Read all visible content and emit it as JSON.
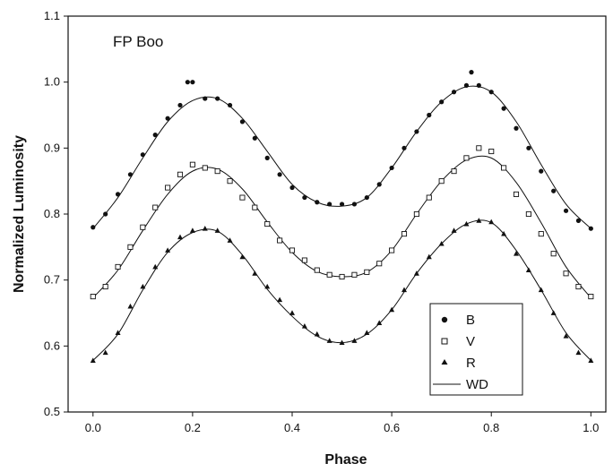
{
  "chart_data": {
    "type": "scatter",
    "title": "",
    "annotation": "FP Boo",
    "xlabel": "Phase",
    "ylabel": "Normalized Luminosity",
    "xlim": [
      -0.05,
      1.03
    ],
    "ylim": [
      0.5,
      1.1
    ],
    "xticks": [
      0.0,
      0.2,
      0.4,
      0.6,
      0.8,
      1.0
    ],
    "xtick_labels": [
      "0.0",
      "0.2",
      "0.4",
      "0.6",
      "0.8",
      "1.0"
    ],
    "yticks": [
      0.5,
      0.6,
      0.7,
      0.8,
      0.9,
      1.0,
      1.1
    ],
    "ytick_labels": [
      "0.5",
      "0.6",
      "0.7",
      "0.8",
      "0.9",
      "1.0",
      "1.1"
    ],
    "grid": false,
    "legend_position": "bottom-right",
    "series": [
      {
        "name": "B",
        "marker": "circle",
        "x": [
          0.0,
          0.025,
          0.05,
          0.075,
          0.1,
          0.125,
          0.15,
          0.175,
          0.19,
          0.2,
          0.225,
          0.25,
          0.275,
          0.3,
          0.325,
          0.35,
          0.375,
          0.4,
          0.425,
          0.45,
          0.475,
          0.5,
          0.525,
          0.55,
          0.575,
          0.6,
          0.625,
          0.65,
          0.675,
          0.7,
          0.725,
          0.75,
          0.76,
          0.775,
          0.8,
          0.825,
          0.85,
          0.875,
          0.9,
          0.925,
          0.95,
          0.975,
          1.0
        ],
        "y": [
          0.78,
          0.8,
          0.83,
          0.86,
          0.89,
          0.92,
          0.945,
          0.965,
          1.0,
          1.0,
          0.975,
          0.975,
          0.965,
          0.94,
          0.915,
          0.885,
          0.86,
          0.84,
          0.825,
          0.818,
          0.815,
          0.815,
          0.815,
          0.825,
          0.845,
          0.87,
          0.9,
          0.925,
          0.95,
          0.97,
          0.985,
          0.995,
          1.015,
          0.995,
          0.985,
          0.96,
          0.93,
          0.9,
          0.865,
          0.835,
          0.805,
          0.79,
          0.778
        ]
      },
      {
        "name": "V",
        "marker": "open-square",
        "x": [
          0.0,
          0.025,
          0.05,
          0.075,
          0.1,
          0.125,
          0.15,
          0.175,
          0.2,
          0.225,
          0.25,
          0.275,
          0.3,
          0.325,
          0.35,
          0.375,
          0.4,
          0.425,
          0.45,
          0.475,
          0.5,
          0.525,
          0.55,
          0.575,
          0.6,
          0.625,
          0.65,
          0.675,
          0.7,
          0.725,
          0.75,
          0.775,
          0.8,
          0.825,
          0.85,
          0.875,
          0.9,
          0.925,
          0.95,
          0.975,
          1.0
        ],
        "y": [
          0.675,
          0.69,
          0.72,
          0.75,
          0.78,
          0.81,
          0.84,
          0.86,
          0.875,
          0.87,
          0.865,
          0.85,
          0.825,
          0.81,
          0.785,
          0.76,
          0.745,
          0.73,
          0.715,
          0.708,
          0.705,
          0.708,
          0.712,
          0.725,
          0.745,
          0.77,
          0.8,
          0.825,
          0.85,
          0.865,
          0.885,
          0.9,
          0.895,
          0.87,
          0.83,
          0.8,
          0.77,
          0.74,
          0.71,
          0.69,
          0.675
        ]
      },
      {
        "name": "R",
        "marker": "triangle",
        "x": [
          0.0,
          0.025,
          0.05,
          0.075,
          0.1,
          0.125,
          0.15,
          0.175,
          0.2,
          0.225,
          0.25,
          0.275,
          0.3,
          0.325,
          0.35,
          0.375,
          0.4,
          0.425,
          0.45,
          0.475,
          0.5,
          0.525,
          0.55,
          0.575,
          0.6,
          0.625,
          0.65,
          0.675,
          0.7,
          0.725,
          0.75,
          0.775,
          0.8,
          0.825,
          0.85,
          0.875,
          0.9,
          0.925,
          0.95,
          0.975,
          1.0
        ],
        "y": [
          0.578,
          0.59,
          0.62,
          0.66,
          0.69,
          0.72,
          0.745,
          0.765,
          0.775,
          0.778,
          0.775,
          0.76,
          0.735,
          0.71,
          0.69,
          0.67,
          0.65,
          0.63,
          0.618,
          0.608,
          0.605,
          0.608,
          0.62,
          0.635,
          0.655,
          0.685,
          0.71,
          0.735,
          0.755,
          0.775,
          0.785,
          0.79,
          0.788,
          0.77,
          0.74,
          0.715,
          0.685,
          0.65,
          0.615,
          0.59,
          0.578
        ]
      },
      {
        "name": "WD",
        "marker": "line",
        "x": [
          0.0,
          0.05,
          0.1,
          0.15,
          0.2,
          0.25,
          0.3,
          0.35,
          0.4,
          0.45,
          0.5,
          0.55,
          0.6,
          0.65,
          0.7,
          0.75,
          0.8,
          0.85,
          0.9,
          0.95,
          1.0
        ],
        "y_B": [
          0.778,
          0.825,
          0.885,
          0.94,
          0.972,
          0.975,
          0.945,
          0.895,
          0.845,
          0.818,
          0.812,
          0.825,
          0.87,
          0.925,
          0.97,
          0.993,
          0.985,
          0.94,
          0.875,
          0.815,
          0.778
        ],
        "y_V": [
          0.673,
          0.715,
          0.775,
          0.83,
          0.865,
          0.868,
          0.838,
          0.788,
          0.742,
          0.713,
          0.705,
          0.712,
          0.745,
          0.8,
          0.85,
          0.882,
          0.885,
          0.848,
          0.787,
          0.72,
          0.673
        ],
        "y_R": [
          0.578,
          0.618,
          0.685,
          0.742,
          0.772,
          0.774,
          0.738,
          0.686,
          0.645,
          0.615,
          0.605,
          0.618,
          0.655,
          0.71,
          0.755,
          0.785,
          0.787,
          0.745,
          0.685,
          0.62,
          0.578
        ]
      }
    ]
  }
}
